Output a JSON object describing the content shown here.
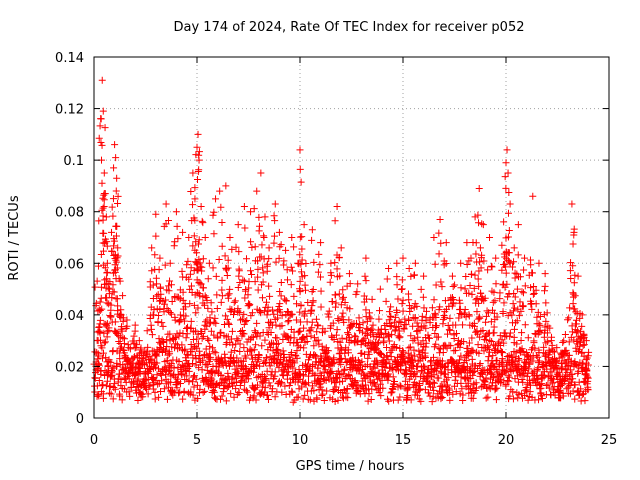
{
  "chart_data": {
    "type": "scatter",
    "title": "Day 174 of 2024, Rate Of TEC Index for receiver p052",
    "xlabel": "GPS time / hours",
    "ylabel": "ROTI / TECUs",
    "xlim": [
      0,
      25
    ],
    "ylim": [
      0,
      0.14
    ],
    "xticks": [
      0,
      5,
      10,
      15,
      20,
      25
    ],
    "xtick_labels": [
      "0",
      "5",
      "10",
      "15",
      "20",
      "25"
    ],
    "yticks": [
      0,
      0.02,
      0.04,
      0.06,
      0.08,
      0.1,
      0.12,
      0.14
    ],
    "ytick_labels": [
      "0",
      "0.02",
      "0.04",
      "0.06",
      "0.08",
      "0.1",
      "0.12",
      "0.14"
    ],
    "grid": true,
    "marker": "+",
    "series": [
      {
        "name": "p052",
        "color": "#ff0000",
        "points": [
          [
            0.2,
            0.03
          ],
          [
            0.3,
            0.045
          ],
          [
            0.35,
            0.116
          ],
          [
            0.4,
            0.131
          ],
          [
            0.45,
            0.119
          ],
          [
            0.5,
            0.095
          ],
          [
            0.55,
            0.087
          ],
          [
            0.6,
            0.078
          ],
          [
            0.65,
            0.06
          ],
          [
            0.75,
            0.05
          ],
          [
            0.85,
            0.072
          ],
          [
            0.95,
            0.097
          ],
          [
            1.0,
            0.106
          ],
          [
            1.05,
            0.101
          ],
          [
            1.1,
            0.093
          ],
          [
            1.15,
            0.066
          ],
          [
            1.3,
            0.042
          ],
          [
            1.6,
            0.038
          ],
          [
            2.0,
            0.036
          ],
          [
            2.2,
            0.03
          ],
          [
            2.8,
            0.066
          ],
          [
            3.0,
            0.079
          ],
          [
            3.2,
            0.062
          ],
          [
            3.5,
            0.083
          ],
          [
            3.7,
            0.06
          ],
          [
            4.0,
            0.08
          ],
          [
            4.3,
            0.072
          ],
          [
            4.6,
            0.07
          ],
          [
            4.8,
            0.095
          ],
          [
            4.9,
            0.085
          ],
          [
            5.0,
            0.105
          ],
          [
            5.05,
            0.11
          ],
          [
            5.1,
            0.1
          ],
          [
            5.2,
            0.082
          ],
          [
            5.4,
            0.07
          ],
          [
            5.6,
            0.06
          ],
          [
            5.9,
            0.085
          ],
          [
            6.1,
            0.088
          ],
          [
            6.4,
            0.09
          ],
          [
            6.6,
            0.07
          ],
          [
            7.0,
            0.075
          ],
          [
            7.3,
            0.082
          ],
          [
            7.6,
            0.08
          ],
          [
            7.9,
            0.088
          ],
          [
            8.1,
            0.095
          ],
          [
            8.3,
            0.078
          ],
          [
            8.5,
            0.066
          ],
          [
            8.8,
            0.083
          ],
          [
            9.0,
            0.072
          ],
          [
            9.3,
            0.065
          ],
          [
            9.6,
            0.07
          ],
          [
            9.9,
            0.06
          ],
          [
            10.0,
            0.104
          ],
          [
            10.2,
            0.075
          ],
          [
            10.6,
            0.073
          ],
          [
            11.0,
            0.068
          ],
          [
            11.5,
            0.06
          ],
          [
            11.8,
            0.082
          ],
          [
            12.0,
            0.066
          ],
          [
            12.4,
            0.056
          ],
          [
            12.8,
            0.052
          ],
          [
            13.2,
            0.062
          ],
          [
            13.5,
            0.046
          ],
          [
            13.9,
            0.05
          ],
          [
            14.3,
            0.058
          ],
          [
            14.7,
            0.06
          ],
          [
            15.0,
            0.062
          ],
          [
            15.3,
            0.058
          ],
          [
            15.6,
            0.06
          ],
          [
            16.0,
            0.055
          ],
          [
            16.5,
            0.07
          ],
          [
            16.8,
            0.077
          ],
          [
            17.1,
            0.068
          ],
          [
            17.4,
            0.055
          ],
          [
            17.8,
            0.06
          ],
          [
            18.1,
            0.068
          ],
          [
            18.3,
            0.062
          ],
          [
            18.5,
            0.078
          ],
          [
            18.7,
            0.089
          ],
          [
            18.9,
            0.075
          ],
          [
            19.2,
            0.07
          ],
          [
            19.5,
            0.062
          ],
          [
            19.8,
            0.067
          ],
          [
            20.0,
            0.099
          ],
          [
            20.05,
            0.104
          ],
          [
            20.1,
            0.095
          ],
          [
            20.2,
            0.083
          ],
          [
            20.4,
            0.066
          ],
          [
            20.6,
            0.075
          ],
          [
            20.9,
            0.062
          ],
          [
            21.3,
            0.086
          ],
          [
            21.6,
            0.06
          ],
          [
            21.9,
            0.056
          ],
          [
            22.2,
            0.03
          ],
          [
            22.8,
            0.025
          ],
          [
            23.2,
            0.083
          ],
          [
            23.3,
            0.072
          ],
          [
            23.5,
            0.055
          ],
          [
            23.7,
            0.04
          ],
          [
            23.9,
            0.03
          ]
        ],
        "baseline_band": {
          "x_start": 0,
          "x_end": 24,
          "y_low": 0.006,
          "y_high": 0.035
        }
      }
    ]
  }
}
